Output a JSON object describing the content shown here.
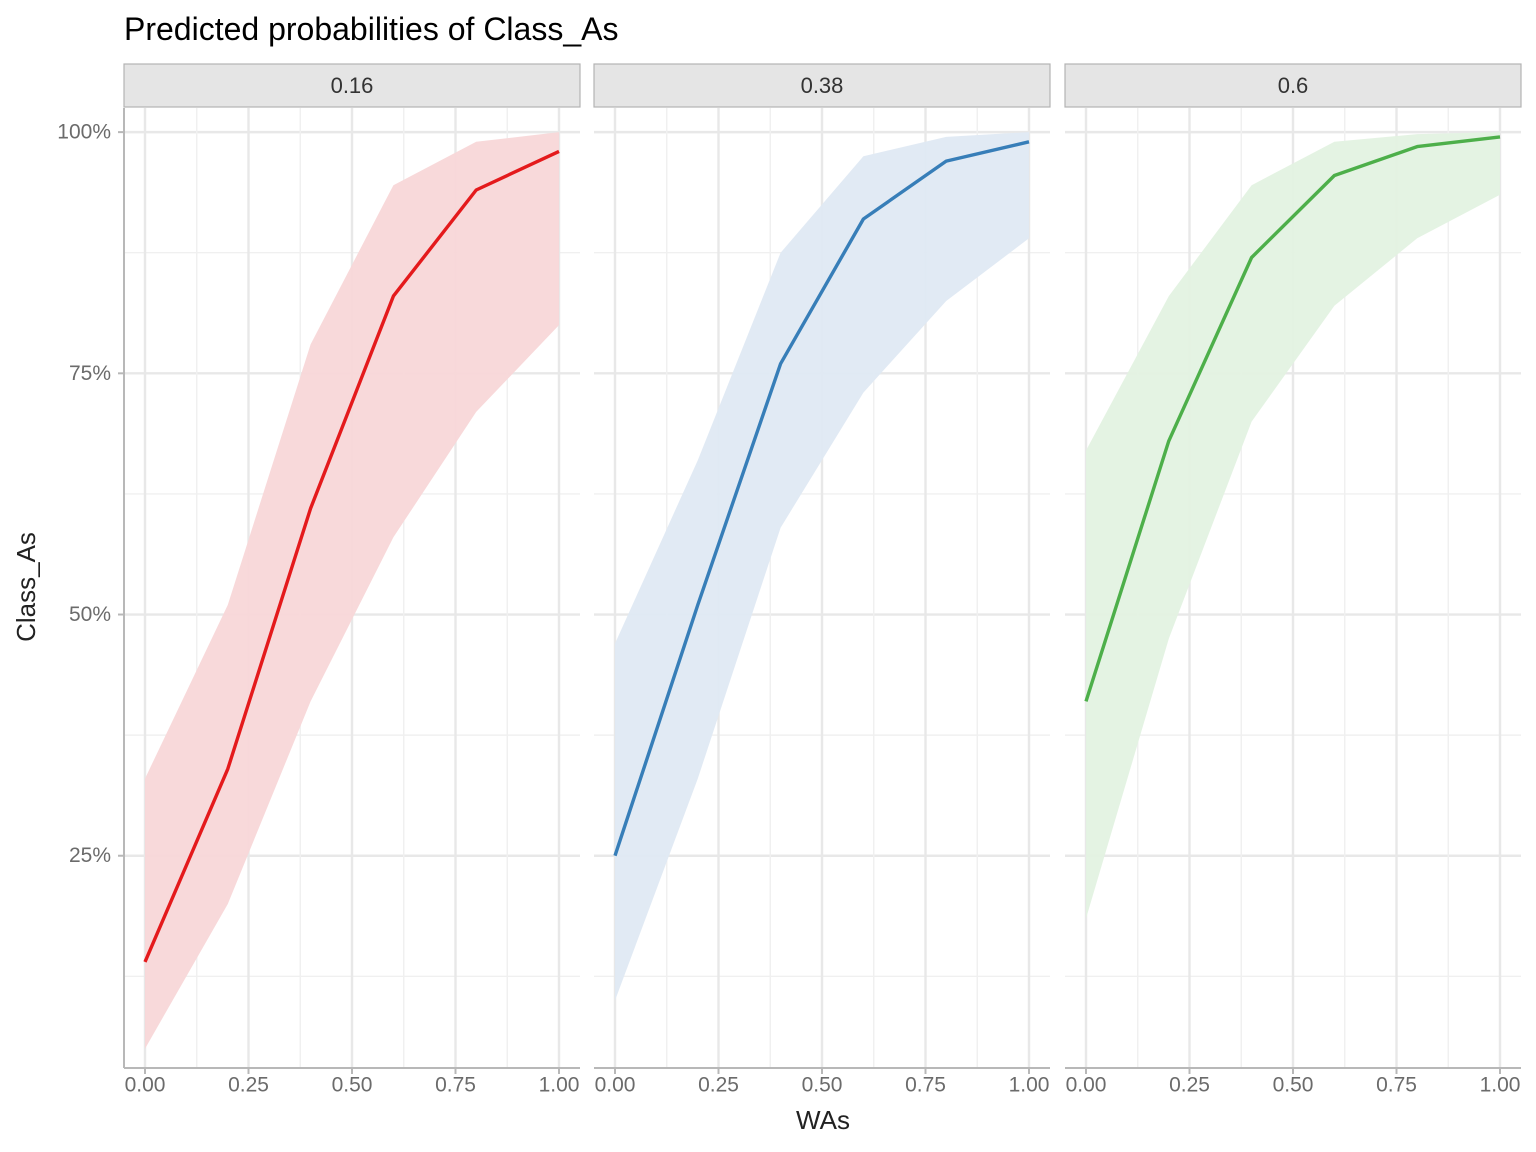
{
  "chart_data": {
    "type": "line",
    "title": "Predicted probabilities of Class_As",
    "xlabel": "WAs",
    "ylabel": "Class_As",
    "xlim": [
      0,
      1
    ],
    "ylim": [
      0.03,
      1.025
    ],
    "x_ticks": [
      {
        "value": 0,
        "label": "0.00"
      },
      {
        "value": 0.25,
        "label": "0.25"
      },
      {
        "value": 0.5,
        "label": "0.50"
      },
      {
        "value": 0.75,
        "label": "0.75"
      },
      {
        "value": 1,
        "label": "1.00"
      }
    ],
    "y_ticks": [
      {
        "value": 0.25,
        "label": "25%"
      },
      {
        "value": 0.5,
        "label": "50%"
      },
      {
        "value": 0.75,
        "label": "75%"
      },
      {
        "value": 1.0,
        "label": "100%"
      }
    ],
    "grid": true,
    "legend": "none",
    "facets": [
      {
        "strip": "0.16",
        "color": "#e41a1c",
        "fill": "#f8d7d8",
        "x": [
          0,
          0.2,
          0.4,
          0.6,
          0.8,
          1.0
        ],
        "y": [
          0.14,
          0.34,
          0.61,
          0.83,
          0.94,
          0.98
        ],
        "lower": [
          0.05,
          0.2,
          0.41,
          0.58,
          0.71,
          0.8
        ],
        "upper": [
          0.33,
          0.51,
          0.78,
          0.945,
          0.99,
          1.0
        ]
      },
      {
        "strip": "0.38",
        "color": "#377eb8",
        "fill": "#dfe9f3",
        "x": [
          0,
          0.2,
          0.4,
          0.6,
          0.8,
          1.0
        ],
        "y": [
          0.25,
          0.51,
          0.76,
          0.91,
          0.97,
          0.99
        ],
        "lower": [
          0.1,
          0.33,
          0.59,
          0.73,
          0.825,
          0.89
        ],
        "upper": [
          0.47,
          0.66,
          0.875,
          0.975,
          0.995,
          1.0
        ]
      },
      {
        "strip": "0.6",
        "color": "#4daf4a",
        "fill": "#e3f2e2",
        "x": [
          0,
          0.2,
          0.4,
          0.6,
          0.8,
          1.0
        ],
        "y": [
          0.41,
          0.68,
          0.87,
          0.955,
          0.985,
          0.995
        ],
        "lower": [
          0.185,
          0.475,
          0.7,
          0.82,
          0.89,
          0.935
        ],
        "upper": [
          0.67,
          0.83,
          0.945,
          0.99,
          0.998,
          1.0
        ]
      }
    ]
  }
}
